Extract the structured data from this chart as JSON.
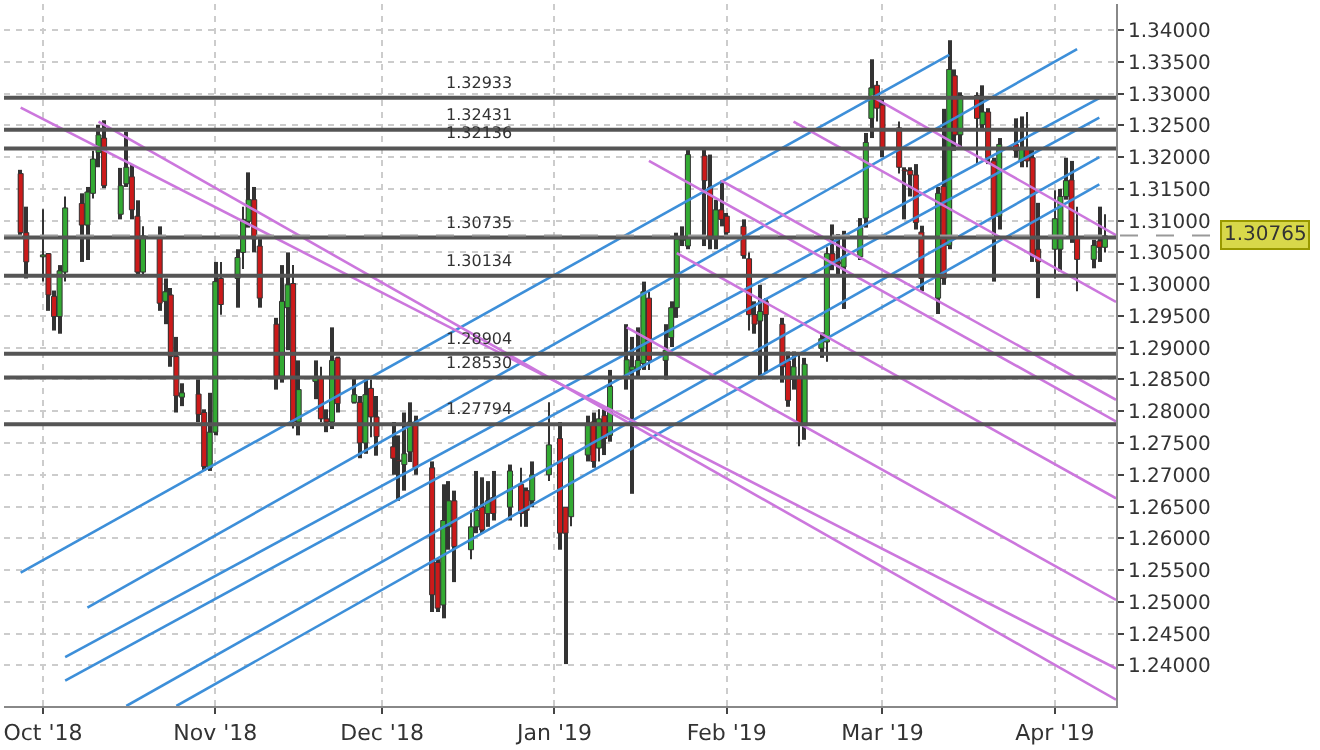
{
  "chart_data": {
    "type": "candlestick",
    "x": [
      "2018-09-27",
      "2018-09-28",
      "2018-10-01",
      "2018-10-02",
      "2018-10-03",
      "2018-10-04",
      "2018-10-05",
      "2018-10-08",
      "2018-10-09",
      "2018-10-10",
      "2018-10-11",
      "2018-10-12",
      "2018-10-15",
      "2018-10-16",
      "2018-10-17",
      "2018-10-18",
      "2018-10-19",
      "2018-10-22",
      "2018-10-23",
      "2018-10-24",
      "2018-10-25",
      "2018-10-26",
      "2018-10-29",
      "2018-10-30",
      "2018-10-31",
      "2018-11-01",
      "2018-11-02",
      "2018-11-05",
      "2018-11-06",
      "2018-11-07",
      "2018-11-08",
      "2018-11-09",
      "2018-11-12",
      "2018-11-13",
      "2018-11-14",
      "2018-11-15",
      "2018-11-16",
      "2018-11-19",
      "2018-11-20",
      "2018-11-21",
      "2018-11-22",
      "2018-11-23",
      "2018-11-26",
      "2018-11-27",
      "2018-11-28",
      "2018-11-29",
      "2018-11-30",
      "2018-12-03",
      "2018-12-04",
      "2018-12-05",
      "2018-12-06",
      "2018-12-07",
      "2018-12-10",
      "2018-12-11",
      "2018-12-12",
      "2018-12-13",
      "2018-12-14",
      "2018-12-17",
      "2018-12-18",
      "2018-12-19",
      "2018-12-20",
      "2018-12-21",
      "2018-12-24",
      "2018-12-26",
      "2018-12-27",
      "2018-12-28",
      "2018-12-31",
      "2019-01-02",
      "2019-01-03",
      "2019-01-04",
      "2019-01-07",
      "2019-01-08",
      "2019-01-09",
      "2019-01-10",
      "2019-01-11",
      "2019-01-14",
      "2019-01-15",
      "2019-01-16",
      "2019-01-17",
      "2019-01-18",
      "2019-01-21",
      "2019-01-22",
      "2019-01-23",
      "2019-01-24",
      "2019-01-25",
      "2019-01-28",
      "2019-01-29",
      "2019-01-30",
      "2019-01-31",
      "2019-02-01",
      "2019-02-04",
      "2019-02-05",
      "2019-02-06",
      "2019-02-07",
      "2019-02-08",
      "2019-02-11",
      "2019-02-12",
      "2019-02-13",
      "2019-02-14",
      "2019-02-15",
      "2019-02-18",
      "2019-02-19",
      "2019-02-20",
      "2019-02-21",
      "2019-02-22",
      "2019-02-25",
      "2019-02-26",
      "2019-02-27",
      "2019-02-28",
      "2019-03-01",
      "2019-03-04",
      "2019-03-05",
      "2019-03-06",
      "2019-03-07",
      "2019-03-08",
      "2019-03-11",
      "2019-03-12",
      "2019-03-13",
      "2019-03-14",
      "2019-03-15",
      "2019-03-18",
      "2019-03-19",
      "2019-03-20",
      "2019-03-21",
      "2019-03-22",
      "2019-03-25",
      "2019-03-26",
      "2019-03-27",
      "2019-03-28",
      "2019-03-29",
      "2019-04-01",
      "2019-04-02",
      "2019-04-03",
      "2019-04-04",
      "2019-04-05",
      "2019-04-08",
      "2019-04-09",
      "2019-04-10"
    ],
    "ohlc": [
      [
        1.3174,
        1.318,
        1.3075,
        1.3081
      ],
      [
        1.3081,
        1.3122,
        1.3009,
        1.3035
      ],
      [
        1.3043,
        1.3118,
        1.3004,
        1.3046
      ],
      [
        1.3048,
        1.3049,
        1.2958,
        1.2983
      ],
      [
        1.2981,
        1.299,
        1.2927,
        1.2949
      ],
      [
        1.2949,
        1.303,
        1.2922,
        1.3021
      ],
      [
        1.3019,
        1.3138,
        1.3004,
        1.312
      ],
      [
        1.3127,
        1.3143,
        1.3035,
        1.3093
      ],
      [
        1.3093,
        1.3153,
        1.3038,
        1.3145
      ],
      [
        1.3143,
        1.321,
        1.3135,
        1.3197
      ],
      [
        1.3207,
        1.3251,
        1.3184,
        1.3235
      ],
      [
        1.323,
        1.3258,
        1.3151,
        1.3155
      ],
      [
        1.311,
        1.3183,
        1.3102,
        1.3155
      ],
      [
        1.3158,
        1.324,
        1.3153,
        1.3184
      ],
      [
        1.3169,
        1.3189,
        1.3102,
        1.3117
      ],
      [
        1.3107,
        1.3132,
        1.3014,
        1.3019
      ],
      [
        1.3019,
        1.3091,
        1.3014,
        1.3076
      ],
      [
        1.3076,
        1.3091,
        1.2958,
        1.297
      ],
      [
        1.2973,
        1.3009,
        1.2937,
        1.2988
      ],
      [
        1.2983,
        1.2994,
        1.287,
        1.2886
      ],
      [
        1.2886,
        1.2917,
        1.2798,
        1.2824
      ],
      [
        1.2822,
        1.2844,
        1.2808,
        1.2829
      ],
      [
        1.2827,
        1.285,
        1.2783,
        1.2795
      ],
      [
        1.2798,
        1.2803,
        1.2706,
        1.2713
      ],
      [
        1.2711,
        1.2829,
        1.2706,
        1.2767
      ],
      [
        1.2767,
        1.3035,
        1.2762,
        1.3004
      ],
      [
        1.3009,
        1.3035,
        1.2952,
        1.2968
      ],
      [
        1.3009,
        1.3055,
        1.2963,
        1.3042
      ],
      [
        1.305,
        1.3122,
        1.3024,
        1.3102
      ],
      [
        1.3099,
        1.3176,
        1.3089,
        1.3133
      ],
      [
        1.3133,
        1.3153,
        1.305,
        1.3071
      ],
      [
        1.306,
        1.3071,
        1.2963,
        1.2978
      ],
      [
        1.2937,
        1.2947,
        1.2834,
        1.2855
      ],
      [
        1.2855,
        1.303,
        1.2845,
        1.2973
      ],
      [
        1.2963,
        1.305,
        1.2896,
        1.2999
      ],
      [
        1.3001,
        1.303,
        1.2773,
        1.2783
      ],
      [
        1.2783,
        1.288,
        1.2762,
        1.2834
      ],
      [
        1.2847,
        1.288,
        1.2819,
        1.2853
      ],
      [
        1.2853,
        1.287,
        1.2783,
        1.2788
      ],
      [
        1.2788,
        1.2803,
        1.2767,
        1.2783
      ],
      [
        1.2783,
        1.2932,
        1.2772,
        1.288
      ],
      [
        1.2884,
        1.2886,
        1.2798,
        1.2812
      ],
      [
        1.2814,
        1.2855,
        1.2812,
        1.2826
      ],
      [
        1.2814,
        1.2824,
        1.2726,
        1.275
      ],
      [
        1.275,
        1.285,
        1.2733,
        1.2826
      ],
      [
        1.2836,
        1.285,
        1.2759,
        1.2791
      ],
      [
        1.2791,
        1.2824,
        1.273,
        1.276
      ],
      [
        1.2744,
        1.2783,
        1.27,
        1.2726
      ],
      [
        1.2723,
        1.2762,
        1.2659,
        1.2721
      ],
      [
        1.2716,
        1.2798,
        1.2675,
        1.2733
      ],
      [
        1.2736,
        1.2814,
        1.272,
        1.2783
      ],
      [
        1.2783,
        1.2793,
        1.27,
        1.2711
      ],
      [
        1.2711,
        1.2721,
        1.2484,
        1.2511
      ],
      [
        1.2562,
        1.2567,
        1.2484,
        1.249
      ],
      [
        1.2495,
        1.2685,
        1.2474,
        1.2628
      ],
      [
        1.2618,
        1.269,
        1.2582,
        1.2659
      ],
      [
        1.2659,
        1.2675,
        1.2531,
        1.2587
      ],
      [
        1.2582,
        1.2644,
        1.2567,
        1.2618
      ],
      [
        1.2618,
        1.2706,
        1.2608,
        1.2644
      ],
      [
        1.2649,
        1.2696,
        1.2608,
        1.2613
      ],
      [
        1.2639,
        1.269,
        1.2618,
        1.2659
      ],
      [
        1.2664,
        1.2706,
        1.2628,
        1.2639
      ],
      [
        1.2649,
        1.2716,
        1.2628,
        1.2706
      ],
      [
        1.2685,
        1.2711,
        1.2618,
        1.2639
      ],
      [
        1.2675,
        1.268,
        1.2618,
        1.2644
      ],
      [
        1.2659,
        1.2721,
        1.2649,
        1.27
      ],
      [
        1.27,
        1.2814,
        1.269,
        1.2747
      ],
      [
        1.2757,
        1.2783,
        1.2582,
        1.2608
      ],
      [
        1.2649,
        1.2649,
        1.2402,
        1.2608
      ],
      [
        1.2634,
        1.2731,
        1.2619,
        1.2731
      ],
      [
        1.2731,
        1.2793,
        1.2721,
        1.2778
      ],
      [
        1.2783,
        1.2798,
        1.2711,
        1.2721
      ],
      [
        1.2742,
        1.2803,
        1.2721,
        1.2788
      ],
      [
        1.2793,
        1.2803,
        1.2731,
        1.2757
      ],
      [
        1.2762,
        1.2865,
        1.2752,
        1.2839
      ],
      [
        1.2857,
        1.2937,
        1.2834,
        1.2881
      ],
      [
        1.2865,
        1.2917,
        1.267,
        1.287
      ],
      [
        1.2865,
        1.2932,
        1.2855,
        1.288
      ],
      [
        1.2875,
        1.3004,
        1.2865,
        1.2988
      ],
      [
        1.2978,
        1.2988,
        1.2865,
        1.288
      ],
      [
        1.288,
        1.2937,
        1.285,
        1.2896
      ],
      [
        1.2916,
        1.2973,
        1.2901,
        1.2963
      ],
      [
        1.2963,
        1.3081,
        1.2947,
        1.3071
      ],
      [
        1.3069,
        1.3091,
        1.306,
        1.3071
      ],
      [
        1.306,
        1.3214,
        1.3055,
        1.3204
      ],
      [
        1.3202,
        1.3214,
        1.306,
        1.3163
      ],
      [
        1.3153,
        1.3204,
        1.3055,
        1.3071
      ],
      [
        1.3071,
        1.3133,
        1.3055,
        1.3117
      ],
      [
        1.3117,
        1.3163,
        1.3091,
        1.3102
      ],
      [
        1.3107,
        1.3112,
        1.3071,
        1.3081
      ],
      [
        1.3091,
        1.3102,
        1.304,
        1.3045
      ],
      [
        1.304,
        1.305,
        1.2927,
        1.2952
      ],
      [
        1.2952,
        1.2973,
        1.2922,
        1.2937
      ],
      [
        1.2942,
        1.2999,
        1.285,
        1.2957
      ],
      [
        1.2973,
        1.2978,
        1.286,
        1.2952
      ],
      [
        1.2937,
        1.2947,
        1.2845,
        1.287
      ],
      [
        1.2879,
        1.2894,
        1.2807,
        1.2817
      ],
      [
        1.285,
        1.2894,
        1.2834,
        1.287
      ],
      [
        1.2853,
        1.2889,
        1.2745,
        1.2781
      ],
      [
        1.2781,
        1.2884,
        1.2755,
        1.2874
      ],
      [
        1.2899,
        1.2924,
        1.2884,
        1.2914
      ],
      [
        1.2909,
        1.3058,
        1.2878,
        1.3048
      ],
      [
        1.3048,
        1.3094,
        1.3022,
        1.3033
      ],
      [
        1.3035,
        1.3079,
        1.3012,
        1.3032
      ],
      [
        1.3027,
        1.3084,
        1.2961,
        1.3043
      ],
      [
        1.3043,
        1.3104,
        1.3038,
        1.3089
      ],
      [
        1.3104,
        1.3238,
        1.3089,
        1.3223
      ],
      [
        1.3261,
        1.3354,
        1.323,
        1.3309
      ],
      [
        1.3313,
        1.332,
        1.3256,
        1.3277
      ],
      [
        1.3282,
        1.3292,
        1.32,
        1.3215
      ],
      [
        1.3246,
        1.3256,
        1.3174,
        1.3184
      ],
      [
        1.318,
        1.3184,
        1.3102,
        1.3178
      ],
      [
        1.3179,
        1.3184,
        1.3138,
        1.3172
      ],
      [
        1.3172,
        1.3189,
        1.3086,
        1.3097
      ],
      [
        1.3082,
        1.3092,
        1.2989,
        1.3009
      ],
      [
        1.2978,
        1.3153,
        1.2953,
        1.3143
      ],
      [
        1.3154,
        1.3276,
        1.2999,
        1.3009
      ],
      [
        1.3061,
        1.3384,
        1.3055,
        1.3338
      ],
      [
        1.3328,
        1.3338,
        1.321,
        1.3235
      ],
      [
        1.3235,
        1.3302,
        1.3215,
        1.3297
      ],
      [
        1.3297,
        1.3302,
        1.3189,
        1.3261
      ],
      [
        1.3251,
        1.3313,
        1.3241,
        1.3271
      ],
      [
        1.3271,
        1.3277,
        1.3189,
        1.3199
      ],
      [
        1.3194,
        1.3199,
        1.3004,
        1.3107
      ],
      [
        1.3107,
        1.323,
        1.3086,
        1.322
      ],
      [
        1.322,
        1.3261,
        1.3199,
        1.321
      ],
      [
        1.3194,
        1.3264,
        1.3184,
        1.3215
      ],
      [
        1.3215,
        1.3271,
        1.3184,
        1.3194
      ],
      [
        1.3199,
        1.3215,
        1.3035,
        1.3045
      ],
      [
        1.3055,
        1.3128,
        1.2978,
        1.3035
      ],
      [
        1.3055,
        1.3148,
        1.3009,
        1.3103
      ],
      [
        1.3055,
        1.315,
        1.302,
        1.3138
      ],
      [
        1.3138,
        1.3199,
        1.3133,
        1.3163
      ],
      [
        1.3164,
        1.3194,
        1.3065,
        1.3075
      ],
      [
        1.3075,
        1.3122,
        1.2989,
        1.3039
      ],
      [
        1.3039,
        1.307,
        1.3025,
        1.3061
      ],
      [
        1.3068,
        1.3122,
        1.3035,
        1.3058
      ],
      [
        1.3058,
        1.311,
        1.305,
        1.3076
      ]
    ],
    "series": [
      {
        "type": "line",
        "color": "#3d8fd9",
        "x": [
          "2018-09-27",
          "2019-03-13"
        ],
        "values": [
          1.2546,
          1.3361
        ]
      },
      {
        "type": "line",
        "color": "#3d8fd9",
        "x": [
          "2018-10-09",
          "2019-04-05"
        ],
        "values": [
          1.2491,
          1.337
        ]
      },
      {
        "type": "line",
        "color": "#3d8fd9",
        "x": [
          "2018-10-05",
          "2019-04-09"
        ],
        "values": [
          1.2413,
          1.3293
        ]
      },
      {
        "type": "line",
        "color": "#3d8fd9",
        "x": [
          "2018-10-05",
          "2019-04-09"
        ],
        "values": [
          1.2376,
          1.3262
        ]
      },
      {
        "type": "line",
        "color": "#3d8fd9",
        "x": [
          "2018-10-16",
          "2019-04-09"
        ],
        "values": [
          1.2336,
          1.32
        ]
      },
      {
        "type": "line",
        "color": "#3d8fd9",
        "x": [
          "2018-10-25",
          "2019-04-09"
        ],
        "values": [
          1.2336,
          1.3157
        ]
      },
      {
        "type": "line",
        "color": "#cc77dd",
        "x": [
          "2018-09-27",
          "2019-04-12"
        ],
        "values": [
          1.3278,
          1.2395
        ]
      },
      {
        "type": "line",
        "color": "#cc77dd",
        "x": [
          "2018-10-11",
          "2019-04-12"
        ],
        "values": [
          1.3256,
          1.2346
        ]
      },
      {
        "type": "line",
        "color": "#cc77dd",
        "x": [
          "2019-01-23",
          "2019-04-12"
        ],
        "values": [
          1.3049,
          1.2663
        ]
      },
      {
        "type": "line",
        "color": "#cc77dd",
        "x": [
          "2019-01-14",
          "2019-04-12"
        ],
        "values": [
          1.2932,
          1.2503
        ]
      },
      {
        "type": "line",
        "color": "#cc77dd",
        "x": [
          "2019-01-31",
          "2019-04-12"
        ],
        "values": [
          1.3163,
          1.2818
        ]
      },
      {
        "type": "line",
        "color": "#cc77dd",
        "x": [
          "2019-01-18",
          "2019-04-12"
        ],
        "values": [
          1.3194,
          1.2784
        ]
      },
      {
        "type": "line",
        "color": "#cc77dd",
        "x": [
          "2019-02-27",
          "2019-04-12"
        ],
        "values": [
          1.3296,
          1.3077
        ]
      },
      {
        "type": "line",
        "color": "#cc77dd",
        "x": [
          "2019-02-13",
          "2019-04-12"
        ],
        "values": [
          1.3256,
          1.2972
        ]
      }
    ],
    "ref_lines": [
      {
        "axis": "y",
        "value": 1.32933,
        "label": "1.32933",
        "color": "#555555"
      },
      {
        "axis": "y",
        "value": 1.32431,
        "label": "1.32431",
        "color": "#555555"
      },
      {
        "axis": "y",
        "value": 1.32136,
        "label": "1.32136",
        "color": "#555555"
      },
      {
        "axis": "y",
        "value": 1.30735,
        "label": "1.30735",
        "color": "#555555"
      },
      {
        "axis": "y",
        "value": 1.30134,
        "label": "1.30134",
        "color": "#555555"
      },
      {
        "axis": "y",
        "value": 1.28904,
        "label": "1.28904",
        "color": "#555555"
      },
      {
        "axis": "y",
        "value": 1.2853,
        "label": "1.28530",
        "color": "#555555"
      },
      {
        "axis": "y",
        "value": 1.27794,
        "label": "1.27794",
        "color": "#555555"
      },
      {
        "axis": "y",
        "value": 1.30765,
        "label": "1.30765",
        "color": "#999999",
        "line_style": "dashed"
      }
    ],
    "xlim": [
      "2018-09-24T00:00",
      "2019-04-12T00:00"
    ],
    "xticks": [
      {
        "value": "2018-10-01",
        "label": "Oct '18"
      },
      {
        "value": "2018-11-01",
        "label": "Nov '18"
      },
      {
        "value": "2018-12-01",
        "label": "Dec '18"
      },
      {
        "value": "2019-01-01",
        "label": "Jan '19"
      },
      {
        "value": "2019-02-01",
        "label": "Feb '19"
      },
      {
        "value": "2019-03-01",
        "label": "Mar '19"
      },
      {
        "value": "2019-04-01",
        "label": "Apr '19"
      }
    ],
    "ylim": [
      1.2336,
      1.3441
    ],
    "yticks": [
      {
        "value": 1.24,
        "label": "1.24000"
      },
      {
        "value": 1.245,
        "label": "1.24500"
      },
      {
        "value": 1.25,
        "label": "1.25000"
      },
      {
        "value": 1.255,
        "label": "1.25500"
      },
      {
        "value": 1.26,
        "label": "1.26000"
      },
      {
        "value": 1.265,
        "label": "1.26500"
      },
      {
        "value": 1.27,
        "label": "1.27000"
      },
      {
        "value": 1.275,
        "label": "1.27500"
      },
      {
        "value": 1.28,
        "label": "1.28000"
      },
      {
        "value": 1.285,
        "label": "1.28500"
      },
      {
        "value": 1.29,
        "label": "1.29000"
      },
      {
        "value": 1.295,
        "label": "1.29500"
      },
      {
        "value": 1.3,
        "label": "1.30000"
      },
      {
        "value": 1.305,
        "label": "1.30500"
      },
      {
        "value": 1.31,
        "label": "1.31000"
      },
      {
        "value": 1.315,
        "label": "1.31500"
      },
      {
        "value": 1.32,
        "label": "1.32000"
      },
      {
        "value": 1.325,
        "label": "1.32500"
      },
      {
        "value": 1.33,
        "label": "1.33000"
      },
      {
        "value": 1.335,
        "label": "1.33500"
      },
      {
        "value": 1.34,
        "label": "1.34000"
      }
    ],
    "grid": true
  }
}
